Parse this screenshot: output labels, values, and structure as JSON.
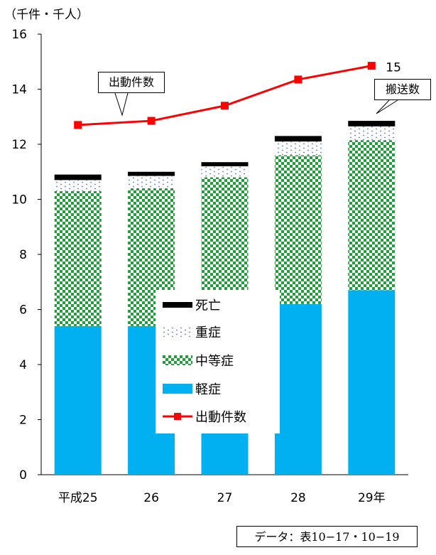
{
  "unit_label": "（千件・千人）",
  "source_label": "データ：表10−17・10−19",
  "colors": {
    "deaths": "#000000",
    "serious": "#4a6fd0",
    "moderate": "#1f9e3a",
    "minor": "#00b0f0",
    "dispatches": "#ff0000"
  },
  "legend": {
    "deaths": "死亡",
    "serious": "重症",
    "moderate": "中等症",
    "minor": "軽症",
    "dispatches": "出動件数"
  },
  "callouts": {
    "dispatches": "出動件数",
    "transported": "搬送数"
  },
  "chart_data": {
    "type": "bar",
    "stacked": true,
    "categories": [
      "平成25",
      "26",
      "27",
      "28",
      "29年"
    ],
    "ylim": [
      0,
      16
    ],
    "yticks": [
      "0",
      "2",
      "4",
      "6",
      "8",
      "10",
      "12",
      "14",
      "16"
    ],
    "series": [
      {
        "name": "軽症",
        "values": [
          5.4,
          5.4,
          5.8,
          6.2,
          6.7
        ]
      },
      {
        "name": "中等症",
        "values": [
          4.9,
          5.0,
          5.0,
          5.4,
          5.45
        ]
      },
      {
        "name": "重症",
        "values": [
          0.4,
          0.45,
          0.4,
          0.5,
          0.5
        ]
      },
      {
        "name": "死亡",
        "values": [
          0.2,
          0.15,
          0.15,
          0.2,
          0.2
        ]
      }
    ],
    "line_series": {
      "name": "出動件数",
      "values": [
        12.7,
        12.85,
        13.4,
        14.35,
        14.85
      ]
    },
    "data_labels": [
      "15"
    ]
  }
}
